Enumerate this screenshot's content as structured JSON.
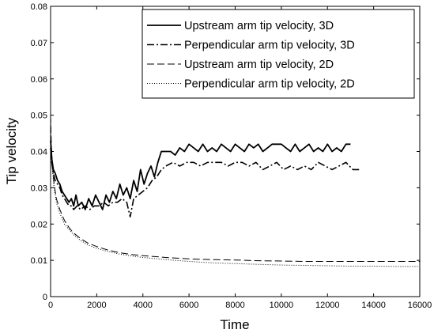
{
  "chart_data": {
    "type": "line",
    "title": "",
    "xlabel": "Time",
    "ylabel": "Tip velocity",
    "xlim": [
      0,
      16000
    ],
    "ylim": [
      0,
      0.08
    ],
    "xticks": [
      0,
      2000,
      4000,
      6000,
      8000,
      10000,
      12000,
      14000,
      16000
    ],
    "xtick_labels": [
      "0",
      "2000",
      "4000",
      "6000",
      "8000",
      "10000",
      "12000",
      "14000",
      "16000"
    ],
    "yticks": [
      0,
      0.01,
      0.02,
      0.03,
      0.04,
      0.05,
      0.06,
      0.07,
      0.08
    ],
    "ytick_labels": [
      "0",
      "0.01",
      "0.02",
      "0.03",
      "0.04",
      "0.05",
      "0.06",
      "0.07",
      "0.08"
    ],
    "grid": false,
    "legend_position": "top-right",
    "series": [
      {
        "name": "Upstream arm tip velocity, 3D",
        "style": "solid",
        "color": "#000000",
        "x": [
          0,
          50,
          120,
          200,
          300,
          400,
          500,
          600,
          700,
          800,
          900,
          1000,
          1100,
          1200,
          1350,
          1500,
          1650,
          1800,
          1950,
          2100,
          2250,
          2400,
          2550,
          2700,
          2850,
          3000,
          3150,
          3300,
          3450,
          3600,
          3750,
          3900,
          4050,
          4200,
          4350,
          4500,
          4650,
          4800,
          5000,
          5200,
          5400,
          5600,
          5800,
          6000,
          6200,
          6400,
          6600,
          6800,
          7000,
          7200,
          7400,
          7600,
          7800,
          8000,
          8200,
          8400,
          8600,
          8800,
          9000,
          9200,
          9400,
          9600,
          9800,
          10000,
          10200,
          10400,
          10600,
          10800,
          11000,
          11200,
          11400,
          11600,
          11800,
          12000,
          12200,
          12400,
          12600,
          12800,
          13000
        ],
        "y": [
          0.043,
          0.038,
          0.035,
          0.034,
          0.032,
          0.031,
          0.029,
          0.028,
          0.027,
          0.026,
          0.027,
          0.025,
          0.028,
          0.025,
          0.026,
          0.024,
          0.027,
          0.025,
          0.028,
          0.026,
          0.024,
          0.028,
          0.026,
          0.029,
          0.027,
          0.031,
          0.028,
          0.03,
          0.027,
          0.032,
          0.029,
          0.035,
          0.031,
          0.034,
          0.036,
          0.033,
          0.037,
          0.04,
          0.04,
          0.04,
          0.039,
          0.041,
          0.04,
          0.042,
          0.041,
          0.04,
          0.042,
          0.04,
          0.041,
          0.04,
          0.042,
          0.041,
          0.04,
          0.042,
          0.041,
          0.04,
          0.042,
          0.041,
          0.042,
          0.04,
          0.041,
          0.042,
          0.042,
          0.042,
          0.041,
          0.04,
          0.042,
          0.04,
          0.041,
          0.042,
          0.04,
          0.041,
          0.04,
          0.042,
          0.04,
          0.041,
          0.04,
          0.042,
          0.042
        ]
      },
      {
        "name": "Perpendicular arm tip velocity, 3D",
        "style": "dashdot",
        "color": "#000000",
        "x": [
          0,
          50,
          120,
          200,
          300,
          400,
          500,
          600,
          700,
          800,
          900,
          1000,
          1150,
          1300,
          1500,
          1700,
          1900,
          2100,
          2300,
          2500,
          2700,
          2900,
          3100,
          3300,
          3450,
          3600,
          3800,
          4000,
          4200,
          4400,
          4600,
          4800,
          5000,
          5300,
          5600,
          5900,
          6200,
          6500,
          6800,
          7100,
          7400,
          7700,
          8000,
          8300,
          8600,
          8900,
          9200,
          9500,
          9800,
          10100,
          10400,
          10700,
          11000,
          11300,
          11600,
          11900,
          12200,
          12500,
          12800,
          13100,
          13400
        ],
        "y": [
          0.041,
          0.037,
          0.034,
          0.032,
          0.031,
          0.03,
          0.028,
          0.027,
          0.026,
          0.025,
          0.025,
          0.024,
          0.025,
          0.024,
          0.025,
          0.024,
          0.025,
          0.025,
          0.026,
          0.025,
          0.026,
          0.026,
          0.027,
          0.026,
          0.022,
          0.027,
          0.028,
          0.029,
          0.03,
          0.032,
          0.033,
          0.035,
          0.036,
          0.037,
          0.036,
          0.037,
          0.037,
          0.036,
          0.037,
          0.037,
          0.037,
          0.036,
          0.037,
          0.037,
          0.036,
          0.037,
          0.035,
          0.036,
          0.037,
          0.035,
          0.036,
          0.035,
          0.036,
          0.035,
          0.037,
          0.036,
          0.035,
          0.036,
          0.037,
          0.035,
          0.035
        ]
      },
      {
        "name": "Upstream arm tip velocity, 2D",
        "style": "dashed",
        "color": "#000000",
        "x": [
          0,
          30,
          80,
          150,
          250,
          400,
          600,
          800,
          1000,
          1300,
          1600,
          2000,
          2500,
          3000,
          3500,
          4000,
          5000,
          6000,
          7000,
          8000,
          9000,
          10000,
          11000,
          12000,
          13000,
          14000,
          15000,
          16000
        ],
        "y": [
          0.05,
          0.042,
          0.036,
          0.031,
          0.027,
          0.024,
          0.021,
          0.019,
          0.0175,
          0.016,
          0.0148,
          0.0138,
          0.0128,
          0.0121,
          0.0116,
          0.0113,
          0.0108,
          0.0104,
          0.0102,
          0.0101,
          0.0099,
          0.0098,
          0.0097,
          0.0097,
          0.0097,
          0.0097,
          0.0097,
          0.0097
        ]
      },
      {
        "name": "Perpendicular arm tip velocity, 2D",
        "style": "dotted",
        "color": "#000000",
        "x": [
          0,
          30,
          80,
          150,
          250,
          400,
          600,
          800,
          1000,
          1300,
          1600,
          2000,
          2500,
          3000,
          3500,
          4000,
          5000,
          6000,
          7000,
          8000,
          9000,
          10000,
          11000,
          12000,
          13000,
          14000,
          15000,
          16000
        ],
        "y": [
          0.049,
          0.041,
          0.035,
          0.03,
          0.026,
          0.023,
          0.02,
          0.0185,
          0.017,
          0.0155,
          0.0143,
          0.0133,
          0.0124,
          0.0117,
          0.0112,
          0.0108,
          0.0102,
          0.0097,
          0.0093,
          0.0091,
          0.0089,
          0.0087,
          0.0086,
          0.0085,
          0.0084,
          0.0084,
          0.0083,
          0.0083
        ]
      }
    ]
  }
}
